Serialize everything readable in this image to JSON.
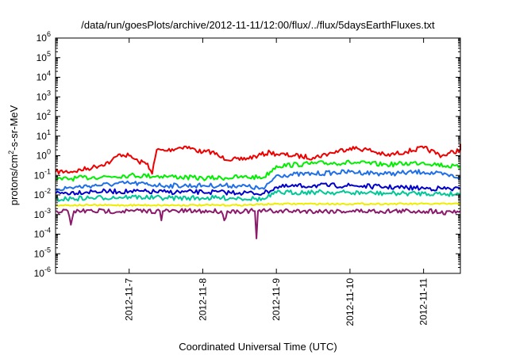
{
  "chart_data": {
    "type": "line",
    "title": "/data/run/goesPlots/archive/2012-11-11/12:00/flux/../flux/5daysEarthFluxes.txt",
    "xlabel": "Coordinated Universal Time (UTC)",
    "ylabel_parts": [
      "protons/cm",
      "2",
      "-s-sr-MeV"
    ],
    "y_scale": "log",
    "ylim": [
      1e-06,
      1000000.0
    ],
    "y_ticks": [
      {
        "base": "10",
        "exp": "-6",
        "value": 1e-06
      },
      {
        "base": "10",
        "exp": "-5",
        "value": 1e-05
      },
      {
        "base": "10",
        "exp": "-4",
        "value": 0.0001
      },
      {
        "base": "10",
        "exp": "-3",
        "value": 0.001
      },
      {
        "base": "10",
        "exp": "-2",
        "value": 0.01
      },
      {
        "base": "10",
        "exp": "-1",
        "value": 0.1
      },
      {
        "base": "10",
        "exp": "0",
        "value": 1
      },
      {
        "base": "10",
        "exp": "1",
        "value": 10
      },
      {
        "base": "10",
        "exp": "2",
        "value": 100
      },
      {
        "base": "10",
        "exp": "3",
        "value": 1000
      },
      {
        "base": "10",
        "exp": "4",
        "value": 10000
      },
      {
        "base": "10",
        "exp": "5",
        "value": 100000
      },
      {
        "base": "10",
        "exp": "6",
        "value": 1000000
      }
    ],
    "xlim": [
      "2012-11-06 00:00",
      "2012-11-11 12:00"
    ],
    "x_ticks": [
      {
        "label": "2012-11-7",
        "value": "2012-11-07 00:00"
      },
      {
        "label": "2012-11-8",
        "value": "2012-11-08 00:00"
      },
      {
        "label": "2012-11-9",
        "value": "2012-11-09 00:00"
      },
      {
        "label": "2012-11-10",
        "value": "2012-11-10 00:00"
      },
      {
        "label": "2012-11-11",
        "value": "2012-11-11 00:00"
      }
    ],
    "grid": false,
    "legend": "none",
    "series": [
      {
        "color": "#ee0000",
        "points": [
          [
            "2012-11-06 00:00",
            0.15
          ],
          [
            "2012-11-06 06:00",
            0.16
          ],
          [
            "2012-11-06 12:00",
            0.25
          ],
          [
            "2012-11-06 18:00",
            0.5
          ],
          [
            "2012-11-06 21:00",
            1.2
          ],
          [
            "2012-11-07 00:00",
            1.0
          ],
          [
            "2012-11-07 03:00",
            0.5
          ],
          [
            "2012-11-07 06:00",
            0.4
          ],
          [
            "2012-11-07 07:30",
            0.12
          ],
          [
            "2012-11-07 09:00",
            2.0
          ],
          [
            "2012-11-07 12:00",
            1.8
          ],
          [
            "2012-11-07 18:00",
            3.0
          ],
          [
            "2012-11-08 00:00",
            1.5
          ],
          [
            "2012-11-08 03:00",
            1.6
          ],
          [
            "2012-11-08 06:00",
            0.8
          ],
          [
            "2012-11-08 12:00",
            0.6
          ],
          [
            "2012-11-08 18:00",
            1.0
          ],
          [
            "2012-11-08 22:00",
            1.5
          ],
          [
            "2012-11-09 00:00",
            1.2
          ],
          [
            "2012-11-09 06:00",
            1.0
          ],
          [
            "2012-11-09 12:00",
            0.8
          ],
          [
            "2012-11-09 18:00",
            1.4
          ],
          [
            "2012-11-10 00:00",
            2.5
          ],
          [
            "2012-11-10 06:00",
            2.0
          ],
          [
            "2012-11-10 12:00",
            1.0
          ],
          [
            "2012-11-10 18:00",
            1.6
          ],
          [
            "2012-11-11 00:00",
            2.5
          ],
          [
            "2012-11-11 06:00",
            1.0
          ],
          [
            "2012-11-11 12:00",
            2.0
          ],
          [
            "2012-11-11 12:00",
            4.0
          ]
        ]
      },
      {
        "color": "#00ee00",
        "points": [
          [
            "2012-11-06 00:00",
            0.06
          ],
          [
            "2012-11-06 12:00",
            0.08
          ],
          [
            "2012-11-07 00:00",
            0.1
          ],
          [
            "2012-11-07 12:00",
            0.09
          ],
          [
            "2012-11-08 00:00",
            0.07
          ],
          [
            "2012-11-08 12:00",
            0.08
          ],
          [
            "2012-11-08 20:00",
            0.08
          ],
          [
            "2012-11-09 00:00",
            0.3
          ],
          [
            "2012-11-09 12:00",
            0.4
          ],
          [
            "2012-11-10 00:00",
            0.45
          ],
          [
            "2012-11-10 12:00",
            0.35
          ],
          [
            "2012-11-11 00:00",
            0.45
          ],
          [
            "2012-11-11 12:00",
            0.25
          ]
        ]
      },
      {
        "color": "#1e6fe8",
        "points": [
          [
            "2012-11-06 00:00",
            0.02
          ],
          [
            "2012-11-06 12:00",
            0.03
          ],
          [
            "2012-11-07 00:00",
            0.04
          ],
          [
            "2012-11-07 12:00",
            0.03
          ],
          [
            "2012-11-08 00:00",
            0.03
          ],
          [
            "2012-11-08 12:00",
            0.03
          ],
          [
            "2012-11-08 20:00",
            0.02
          ],
          [
            "2012-11-09 00:00",
            0.1
          ],
          [
            "2012-11-09 12:00",
            0.12
          ],
          [
            "2012-11-10 00:00",
            0.15
          ],
          [
            "2012-11-10 12:00",
            0.12
          ],
          [
            "2012-11-11 00:00",
            0.15
          ],
          [
            "2012-11-11 12:00",
            0.08
          ]
        ]
      },
      {
        "color": "#0000cc",
        "points": [
          [
            "2012-11-06 00:00",
            0.012
          ],
          [
            "2012-11-06 12:00",
            0.015
          ],
          [
            "2012-11-07 00:00",
            0.015
          ],
          [
            "2012-11-07 12:00",
            0.014
          ],
          [
            "2012-11-08 00:00",
            0.014
          ],
          [
            "2012-11-08 12:00",
            0.013
          ],
          [
            "2012-11-08 20:00",
            0.012
          ],
          [
            "2012-11-09 00:00",
            0.025
          ],
          [
            "2012-11-09 12:00",
            0.03
          ],
          [
            "2012-11-10 00:00",
            0.03
          ],
          [
            "2012-11-10 12:00",
            0.025
          ],
          [
            "2012-11-11 00:00",
            0.022
          ],
          [
            "2012-11-11 12:00",
            0.02
          ]
        ]
      },
      {
        "color": "#00c896",
        "points": [
          [
            "2012-11-06 00:00",
            0.006
          ],
          [
            "2012-11-06 12:00",
            0.007
          ],
          [
            "2012-11-07 00:00",
            0.008
          ],
          [
            "2012-11-07 12:00",
            0.007
          ],
          [
            "2012-11-08 00:00",
            0.007
          ],
          [
            "2012-11-08 12:00",
            0.007
          ],
          [
            "2012-11-08 20:00",
            0.006
          ],
          [
            "2012-11-09 00:00",
            0.013
          ],
          [
            "2012-11-09 12:00",
            0.014
          ],
          [
            "2012-11-10 00:00",
            0.013
          ],
          [
            "2012-11-10 12:00",
            0.012
          ],
          [
            "2012-11-11 00:00",
            0.012
          ],
          [
            "2012-11-11 12:00",
            0.011
          ]
        ]
      },
      {
        "color": "#eeee00",
        "points": [
          [
            "2012-11-06 00:00",
            0.003
          ],
          [
            "2012-11-06 12:00",
            0.003
          ],
          [
            "2012-11-07 00:00",
            0.003
          ],
          [
            "2012-11-07 12:00",
            0.003
          ],
          [
            "2012-11-08 00:00",
            0.003
          ],
          [
            "2012-11-08 12:00",
            0.003
          ],
          [
            "2012-11-09 00:00",
            0.0035
          ],
          [
            "2012-11-09 12:00",
            0.0035
          ],
          [
            "2012-11-10 00:00",
            0.0035
          ],
          [
            "2012-11-10 12:00",
            0.0035
          ],
          [
            "2012-11-11 00:00",
            0.0035
          ],
          [
            "2012-11-11 12:00",
            0.0035
          ]
        ]
      },
      {
        "color": "#8b1a6b",
        "points": [
          [
            "2012-11-06 00:00",
            0.0015
          ],
          [
            "2012-11-06 04:00",
            0.0015
          ],
          [
            "2012-11-06 05:00",
            0.0003
          ],
          [
            "2012-11-06 06:00",
            0.0015
          ],
          [
            "2012-11-07 00:00",
            0.0015
          ],
          [
            "2012-11-07 10:00",
            0.0015
          ],
          [
            "2012-11-07 10:30",
            0.0005
          ],
          [
            "2012-11-07 11:00",
            0.0015
          ],
          [
            "2012-11-08 00:00",
            0.0015
          ],
          [
            "2012-11-08 06:00",
            0.0015
          ],
          [
            "2012-11-08 07:00",
            0.0005
          ],
          [
            "2012-11-08 08:00",
            0.0015
          ],
          [
            "2012-11-08 17:00",
            0.0015
          ],
          [
            "2012-11-08 17:30",
            6e-05
          ],
          [
            "2012-11-08 18:00",
            0.0015
          ],
          [
            "2012-11-09 00:00",
            0.0015
          ],
          [
            "2012-11-10 00:00",
            0.0015
          ],
          [
            "2012-11-11 00:00",
            0.0015
          ],
          [
            "2012-11-11 06:00",
            0.0015
          ],
          [
            "2012-11-11 07:00",
            0.001
          ],
          [
            "2012-11-11 08:00",
            0.0015
          ],
          [
            "2012-11-11 12:00",
            0.0015
          ]
        ]
      }
    ]
  }
}
